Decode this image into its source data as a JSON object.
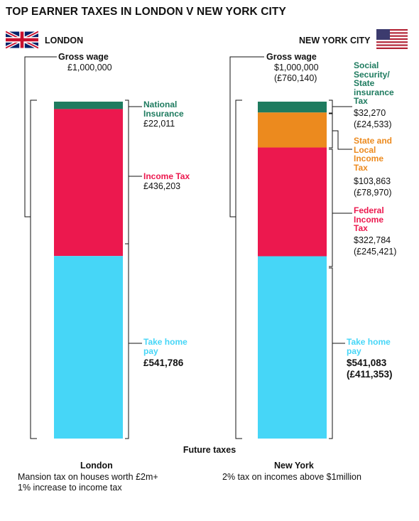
{
  "title": "TOP EARNER TAXES IN LONDON V NEW YORK CITY",
  "cities": {
    "london": {
      "name": "LONDON",
      "flag_icon": "uk-flag-icon"
    },
    "nyc": {
      "name": "NEW YORK CITY",
      "flag_icon": "us-flag-icon"
    }
  },
  "colors": {
    "national_insurance": "#1E7B5F",
    "income_tax": "#EC184E",
    "take_home": "#46D6F7",
    "state_local": "#EC8A1E",
    "social_security": "#1E7B5F"
  },
  "chart_data": [
    {
      "type": "bar",
      "stacked": true,
      "city": "London",
      "total": 1000000,
      "segments": [
        {
          "name": "National Insurance",
          "value": 22011,
          "color": "#1E7B5F"
        },
        {
          "name": "Income Tax",
          "value": 436203,
          "color": "#EC184E"
        },
        {
          "name": "Take home pay",
          "value": 541786,
          "color": "#46D6F7"
        }
      ]
    },
    {
      "type": "bar",
      "stacked": true,
      "city": "New York",
      "total": 1000000,
      "segments": [
        {
          "name": "Social Security/ State insurance Tax",
          "value": 32270,
          "color": "#1E7B5F"
        },
        {
          "name": "State and Local Income Tax",
          "value": 103863,
          "color": "#EC8A1E"
        },
        {
          "name": "Federal Income Tax",
          "value": 322784,
          "color": "#EC184E"
        },
        {
          "name": "Take home pay",
          "value": 541083,
          "color": "#46D6F7"
        }
      ]
    }
  ],
  "london": {
    "gross_label": "Gross wage",
    "gross_value": "£1,000,000",
    "ni_label_1": "National",
    "ni_label_2": "Insurance",
    "ni_value": "£22,011",
    "it_label": "Income Tax",
    "it_value": "£436,203",
    "th_label_1": "Take home",
    "th_label_2": "pay",
    "th_value": "£541,786"
  },
  "nyc": {
    "gross_label": "Gross wage",
    "gross_value_1": "$1,000,000",
    "gross_value_2": "(£760,140)",
    "ss_label_1": "Social",
    "ss_label_2": "Security/",
    "ss_label_3": "State",
    "ss_label_4": "insurance",
    "ss_label_5": "Tax",
    "ss_value_1": "$32,270",
    "ss_value_2": "(£24,533)",
    "sl_label_1": "State and",
    "sl_label_2": "Local",
    "sl_label_3": "Income",
    "sl_label_4": "Tax",
    "sl_value_1": "$103,863",
    "sl_value_2": "(£78,970)",
    "fed_label_1": "Federal",
    "fed_label_2": "Income",
    "fed_label_3": "Tax",
    "fed_value_1": "$322,784",
    "fed_value_2": "(£245,421)",
    "th_label_1": "Take home",
    "th_label_2": "pay",
    "th_value_1": "$541,083",
    "th_value_2": "(£411,353)"
  },
  "future": {
    "title": "Future taxes",
    "london_head": "London",
    "london_line_1": "Mansion tax on houses worth £2m+",
    "london_line_2": "1% increase to income tax",
    "ny_head": "New York",
    "ny_line_1": "2% tax on incomes above $1million"
  }
}
